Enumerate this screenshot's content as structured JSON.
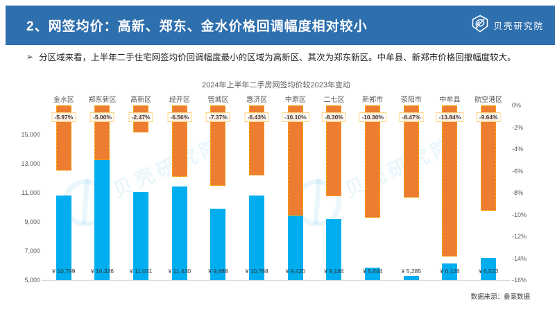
{
  "header": {
    "title": "2、网签均价：高新、郑东、金水价格回调幅度相对较小",
    "logo_text": "贝壳研究院",
    "bg_color": "#2E6FAE"
  },
  "bullet": {
    "marker": "➢",
    "text": "分区域来看，上半年二手住宅网签均价回调幅度最小的区域为高新区、其次为郑东新区。中牟县、新郑市价格回撤幅度较大。"
  },
  "watermark": {
    "text": "贝壳研究院"
  },
  "source": "数据来源：备案数据",
  "chart_data": {
    "type": "bar",
    "title": "2024年上半年二手房网签均价较2023年变动",
    "categories": [
      "金水区",
      "郑东新区",
      "高新区",
      "经开区",
      "管城区",
      "惠济区",
      "中原区",
      "二七区",
      "新郑市",
      "荥阳市",
      "中牟县",
      "航空港区"
    ],
    "series": [
      {
        "id": "price",
        "axis": "left",
        "color": "#00AEEF",
        "values": [
          10799,
          16326,
          11031,
          11430,
          9888,
          10788,
          9420,
          9184,
          5844,
          5285,
          6128,
          6523
        ],
        "labels": [
          "¥ 10,799",
          "¥ 16,326",
          "¥ 11,031",
          "¥ 11,430",
          "¥ 9,888",
          "¥ 10,788",
          "¥ 9,420",
          "¥ 9,184",
          "¥ 5,844",
          "¥ 5,285",
          "¥ 6,128",
          "¥ 6,523"
        ]
      },
      {
        "id": "change_pct",
        "axis": "right",
        "color": "#ED7D31",
        "values": [
          -5.97,
          -5.0,
          -2.47,
          -6.56,
          -7.37,
          -6.43,
          -10.1,
          -8.3,
          -10.3,
          -8.47,
          -13.84,
          -9.64
        ],
        "labels": [
          "-5.97%",
          "-5.00%",
          "-2.47%",
          "-6.56%",
          "-7.37%",
          "-6.43%",
          "-10.10%",
          "-8.30%",
          "-10.30%",
          "-8.47%",
          "-13.84%",
          "-9.64%"
        ]
      }
    ],
    "left_axis": {
      "min": 5000,
      "max": 17000,
      "ticks": [
        "15,000",
        "13,000",
        "11,000",
        "9,000",
        "7,000",
        "5,000"
      ]
    },
    "right_axis": {
      "min": -16,
      "max": 0,
      "ticks": [
        "0%",
        "-2%",
        "-4%",
        "-6%",
        "-8%",
        "-10%",
        "-12%",
        "-14%",
        "-16%"
      ]
    },
    "grid": false,
    "legend": "none"
  }
}
